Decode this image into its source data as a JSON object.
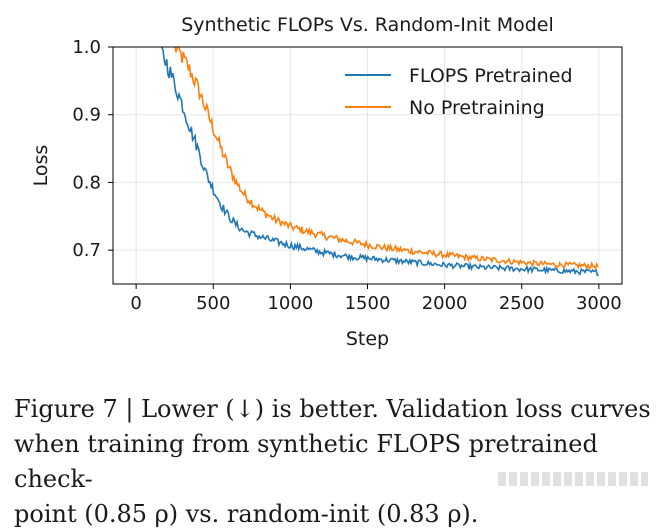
{
  "chart_data": {
    "type": "line",
    "title": "Synthetic FLOPs Vs. Random-Init Model",
    "xlabel": "Step",
    "ylabel": "Loss",
    "xlim": [
      -150,
      3150
    ],
    "ylim": [
      0.65,
      1.0
    ],
    "xticks": [
      0,
      500,
      1000,
      1500,
      2000,
      2500,
      3000
    ],
    "xtick_labels": [
      "0",
      "500",
      "1000",
      "1500",
      "2000",
      "2500",
      "3000"
    ],
    "yticks": [
      0.7,
      0.8,
      0.9,
      1.0
    ],
    "ytick_labels": [
      "0.7",
      "0.8",
      "0.9",
      "1.0"
    ],
    "grid": true,
    "legend_position": "top-right",
    "series": [
      {
        "name": "FLOPS Pretrained",
        "color": "#1f77b4",
        "x": [
          150,
          200,
          250,
          300,
          350,
          400,
          450,
          500,
          550,
          600,
          650,
          700,
          800,
          900,
          1000,
          1100,
          1200,
          1400,
          1600,
          1800,
          2000,
          2200,
          2400,
          2600,
          2800,
          3000
        ],
        "y": [
          1.0,
          0.975,
          0.945,
          0.915,
          0.88,
          0.85,
          0.815,
          0.79,
          0.767,
          0.75,
          0.737,
          0.728,
          0.72,
          0.713,
          0.707,
          0.702,
          0.697,
          0.69,
          0.686,
          0.682,
          0.678,
          0.675,
          0.673,
          0.671,
          0.669,
          0.667
        ]
      },
      {
        "name": "No Pretraining",
        "color": "#ff7f0e",
        "x": [
          250,
          300,
          350,
          400,
          450,
          500,
          550,
          600,
          650,
          700,
          800,
          900,
          1000,
          1100,
          1200,
          1400,
          1600,
          1800,
          2000,
          2200,
          2400,
          2600,
          2800,
          3000
        ],
        "y": [
          1.0,
          0.985,
          0.965,
          0.94,
          0.91,
          0.88,
          0.85,
          0.822,
          0.8,
          0.782,
          0.76,
          0.745,
          0.735,
          0.728,
          0.722,
          0.712,
          0.704,
          0.698,
          0.693,
          0.688,
          0.684,
          0.68,
          0.678,
          0.676
        ]
      }
    ]
  },
  "caption": {
    "line1": "Figure 7 | Lower (↓) is better. Validation loss curves",
    "line2": "when training from synthetic FLOPS pretrained check-",
    "line3": "point (0.85 ρ) vs. random-init (0.83 ρ)."
  }
}
